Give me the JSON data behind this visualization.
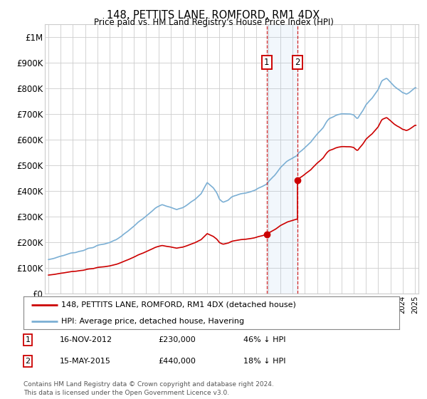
{
  "title": "148, PETTITS LANE, ROMFORD, RM1 4DX",
  "subtitle": "Price paid vs. HM Land Registry's House Price Index (HPI)",
  "ylim": [
    0,
    1050000
  ],
  "yticks": [
    0,
    100000,
    200000,
    300000,
    400000,
    500000,
    600000,
    700000,
    800000,
    900000,
    1000000
  ],
  "ytick_labels": [
    "£0",
    "£100K",
    "£200K",
    "£300K",
    "£400K",
    "£500K",
    "£600K",
    "£700K",
    "£800K",
    "£900K",
    "£1M"
  ],
  "hpi_color": "#7bafd4",
  "price_color": "#cc0000",
  "sale1_year": 2012.88,
  "sale1_price": 230000,
  "sale2_year": 2015.37,
  "sale2_price": 440000,
  "legend1": "148, PETTITS LANE, ROMFORD, RM1 4DX (detached house)",
  "legend2": "HPI: Average price, detached house, Havering",
  "annotation1_date": "16-NOV-2012",
  "annotation1_price": "£230,000",
  "annotation1_hpi": "46% ↓ HPI",
  "annotation2_date": "15-MAY-2015",
  "annotation2_price": "£440,000",
  "annotation2_hpi": "18% ↓ HPI",
  "footer": "Contains HM Land Registry data © Crown copyright and database right 2024.\nThis data is licensed under the Open Government Licence v3.0.",
  "bg_color": "#ffffff",
  "grid_color": "#cccccc",
  "span_color": "#ddeeff",
  "xmin": 1995,
  "xmax": 2025
}
